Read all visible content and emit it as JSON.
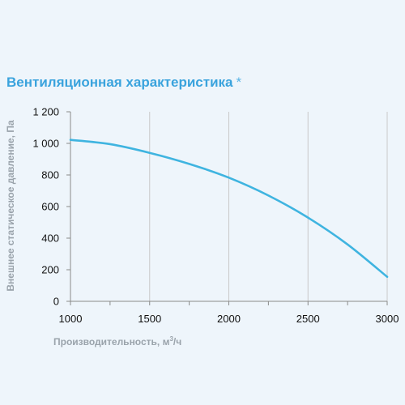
{
  "chart_data": {
    "type": "line",
    "title": "Вентиляционная характеристика",
    "title_note": "*",
    "xlabel": "Производительность, м",
    "xlabel_sup": "3",
    "xlabel_suffix": "/ч",
    "ylabel": "Внешнее статическое давление, Па",
    "xlim": [
      1000,
      3000
    ],
    "ylim": [
      0,
      1200
    ],
    "x_ticks": [
      1000,
      1500,
      2000,
      2500,
      3000
    ],
    "x_tick_labels": [
      "1000",
      "1500",
      "2000",
      "2500",
      "3000"
    ],
    "x_minor_step": 250,
    "y_ticks": [
      0,
      200,
      400,
      600,
      800,
      1000,
      1200
    ],
    "y_tick_labels": [
      "0",
      "200",
      "400",
      "600",
      "800",
      "1 000",
      "1 200"
    ],
    "grid": "vertical",
    "series": [
      {
        "color": "#3fb4e0",
        "x": [
          1000,
          1250,
          1500,
          1750,
          2000,
          2250,
          2500,
          2750,
          3000
        ],
        "y": [
          1022,
          995,
          940,
          870,
          783,
          670,
          530,
          360,
          155
        ]
      }
    ]
  }
}
